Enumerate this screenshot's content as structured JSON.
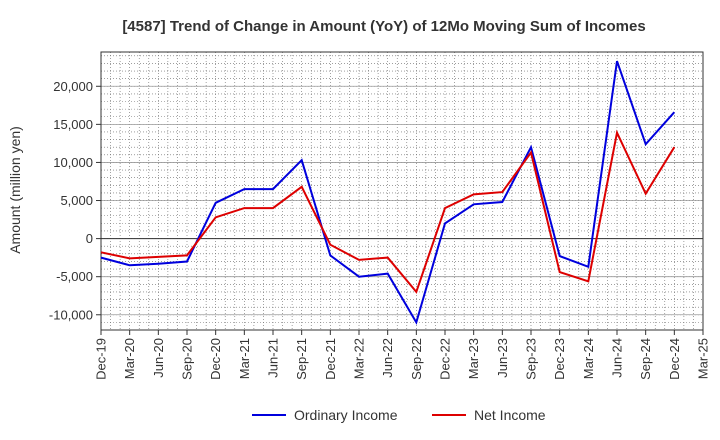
{
  "chart_data": {
    "type": "line",
    "title": "[4587]  Trend of Change in Amount (YoY) of 12Mo Moving Sum of Incomes",
    "ylabel": "Amount (million yen)",
    "xlabel": "",
    "ylim": [
      -12000,
      24500
    ],
    "yticks": [
      -10000,
      -5000,
      0,
      5000,
      10000,
      15000,
      20000
    ],
    "ytick_labels": [
      "-10,000",
      "-5,000",
      "0",
      "5,000",
      "10,000",
      "15,000",
      "20,000"
    ],
    "categories": [
      "Dec-19",
      "Mar-20",
      "Jun-20",
      "Sep-20",
      "Dec-20",
      "Mar-21",
      "Jun-21",
      "Sep-21",
      "Dec-21",
      "Mar-22",
      "Jun-22",
      "Sep-22",
      "Dec-22",
      "Mar-23",
      "Jun-23",
      "Sep-23",
      "Dec-23",
      "Mar-24",
      "Jun-24",
      "Sep-24",
      "Dec-24",
      "Mar-25"
    ],
    "grid": true,
    "legend_position": "bottom-center",
    "series": [
      {
        "name": "Ordinary Income",
        "color": "#0000dd",
        "values": [
          -2500,
          -3500,
          -3300,
          -3000,
          4700,
          6500,
          6500,
          10300,
          -2200,
          -5000,
          -4600,
          -11000,
          2000,
          4500,
          4800,
          12000,
          -2300,
          -3700,
          23300,
          12400,
          16600,
          null
        ]
      },
      {
        "name": "Net Income",
        "color": "#dd0000",
        "values": [
          -1800,
          -2600,
          -2400,
          -2200,
          2800,
          4000,
          4000,
          6800,
          -800,
          -2800,
          -2500,
          -7000,
          4000,
          5800,
          6100,
          11300,
          -4400,
          -5600,
          13900,
          5900,
          12000,
          null
        ]
      }
    ]
  }
}
